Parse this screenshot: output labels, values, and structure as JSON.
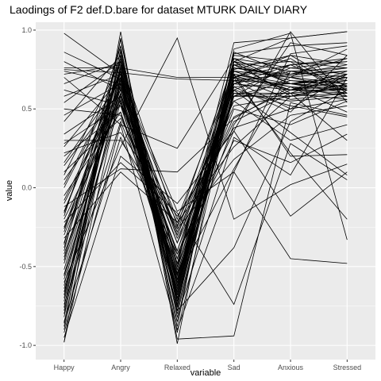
{
  "chart_data": {
    "type": "line",
    "title": "Laodings of F2 def.D.bare for dataset MTURK DAILY DIARY",
    "xlabel": "variable",
    "ylabel": "value",
    "categories": [
      "Happy",
      "Angry",
      "Relaxed",
      "Sad",
      "Anxious",
      "Stressed"
    ],
    "y_ticks": [
      1.0,
      0.5,
      0.0,
      -0.5,
      -1.0
    ],
    "y_tick_labels": [
      "1.0",
      "0.5",
      "0.0",
      "-0.5",
      "-1.0"
    ],
    "ylim": [
      -1.09,
      1.05
    ],
    "grid": true,
    "legend": "none",
    "colors": {
      "panel": "#ebebeb",
      "grid_major": "#ffffff",
      "line": "#000000"
    },
    "series": [
      {
        "values": [
          0.98,
          0.72,
          -0.52,
          0.74,
          0.62,
          0.7
        ]
      },
      {
        "values": [
          -0.98,
          0.99,
          -0.99,
          0.8,
          0.95,
          0.99
        ]
      },
      {
        "values": [
          0.75,
          0.73,
          0.69,
          0.68,
          0.66,
          0.64
        ]
      },
      {
        "values": [
          0.74,
          0.66,
          -0.32,
          0.42,
          0.6,
          0.72
        ]
      },
      {
        "values": [
          -0.88,
          0.95,
          -0.75,
          0.7,
          0.82,
          0.6
        ]
      },
      {
        "values": [
          -0.7,
          0.82,
          -0.5,
          0.58,
          0.68,
          0.64
        ]
      },
      {
        "values": [
          -0.62,
          0.78,
          -0.62,
          0.76,
          0.71,
          0.76
        ]
      },
      {
        "values": [
          -0.55,
          0.63,
          -0.7,
          0.62,
          0.52,
          0.45
        ]
      },
      {
        "values": [
          -0.48,
          0.7,
          -0.8,
          0.66,
          0.74,
          0.7
        ]
      },
      {
        "values": [
          -0.42,
          0.58,
          -0.55,
          0.71,
          0.62,
          0.68
        ]
      },
      {
        "values": [
          -0.35,
          0.76,
          -0.68,
          0.8,
          0.58,
          0.66
        ]
      },
      {
        "values": [
          -0.3,
          0.6,
          -0.45,
          0.5,
          0.4,
          0.55
        ]
      },
      {
        "values": [
          -0.25,
          0.66,
          -0.6,
          0.74,
          0.7,
          0.62
        ]
      },
      {
        "values": [
          -0.2,
          0.54,
          -0.4,
          0.64,
          0.66,
          0.72
        ]
      },
      {
        "values": [
          -0.15,
          0.72,
          -0.85,
          0.82,
          0.76,
          0.8
        ]
      },
      {
        "values": [
          -0.1,
          0.62,
          -0.3,
          0.52,
          0.58,
          0.6
        ]
      },
      {
        "values": [
          -0.05,
          0.48,
          -0.52,
          0.68,
          0.66,
          0.7
        ]
      },
      {
        "values": [
          0.0,
          0.7,
          -0.72,
          0.6,
          0.55,
          0.58
        ]
      },
      {
        "values": [
          0.05,
          0.55,
          -0.35,
          0.45,
          0.62,
          0.65
        ]
      },
      {
        "values": [
          0.1,
          0.44,
          -0.25,
          0.55,
          0.7,
          0.74
        ]
      },
      {
        "values": [
          0.16,
          0.68,
          -0.58,
          0.72,
          0.64,
          0.62
        ]
      },
      {
        "values": [
          0.22,
          0.35,
          -0.18,
          0.38,
          0.5,
          0.56
        ]
      },
      {
        "values": [
          0.28,
          0.52,
          -0.22,
          0.26,
          0.58,
          0.66
        ]
      },
      {
        "values": [
          0.3,
          0.3,
          -0.26,
          0.18,
          0.46,
          0.52
        ]
      },
      {
        "values": [
          0.42,
          0.84,
          -0.6,
          0.86,
          0.72,
          0.82
        ]
      },
      {
        "values": [
          0.5,
          0.46,
          -0.4,
          0.58,
          0.6,
          0.63
        ]
      },
      {
        "values": [
          0.58,
          0.72,
          -0.66,
          0.7,
          0.56,
          0.6
        ]
      },
      {
        "values": [
          0.66,
          0.8,
          -0.7,
          0.78,
          0.68,
          0.66
        ]
      },
      {
        "values": [
          0.72,
          0.78,
          -0.48,
          0.84,
          0.8,
          0.76
        ]
      },
      {
        "values": [
          0.8,
          0.62,
          -0.35,
          0.66,
          0.62,
          0.62
        ]
      },
      {
        "values": [
          0.86,
          0.69,
          -0.2,
          0.74,
          0.62,
          0.6
        ]
      },
      {
        "values": [
          -0.6,
          0.26,
          0.95,
          -0.2,
          0.02,
          0.15
        ]
      },
      {
        "values": [
          -0.4,
          0.9,
          -0.96,
          -0.94,
          0.54,
          0.46
        ]
      },
      {
        "values": [
          -0.22,
          0.16,
          -0.16,
          -0.74,
          0.28,
          0.05
        ]
      },
      {
        "values": [
          -0.78,
          0.76,
          -0.78,
          -0.38,
          0.42,
          0.62
        ]
      },
      {
        "values": [
          -0.72,
          0.74,
          -0.62,
          0.72,
          0.2,
          0.21
        ]
      },
      {
        "values": [
          -0.68,
          0.84,
          -0.88,
          0.88,
          0.98,
          -0.33
        ]
      },
      {
        "values": [
          -0.95,
          0.2,
          -0.1,
          0.36,
          0.99,
          0.54
        ]
      },
      {
        "values": [
          -0.92,
          0.4,
          -0.9,
          0.1,
          -0.45,
          -0.48
        ]
      },
      {
        "values": [
          -0.85,
          0.32,
          -0.42,
          0.36,
          -0.18,
          0.1
        ]
      },
      {
        "values": [
          -0.82,
          0.88,
          -0.72,
          0.62,
          0.35,
          0.08
        ]
      },
      {
        "values": [
          -0.76,
          0.94,
          -0.82,
          0.32,
          0.08,
          0.7
        ]
      },
      {
        "values": [
          -0.66,
          0.58,
          -0.55,
          0.4,
          0.92,
          0.84
        ]
      },
      {
        "values": [
          -0.58,
          0.66,
          -0.28,
          0.7,
          0.22,
          -0.2
        ]
      },
      {
        "values": [
          -0.52,
          0.7,
          -0.15,
          0.1,
          0.85,
          0.9
        ]
      },
      {
        "values": [
          -0.46,
          0.8,
          -0.74,
          0.78,
          0.6,
          0.3
        ]
      },
      {
        "values": [
          -0.38,
          0.74,
          -0.58,
          0.12,
          0.74,
          0.68
        ]
      },
      {
        "values": [
          -0.32,
          0.1,
          -0.22,
          0.55,
          0.3,
          0.4
        ]
      },
      {
        "values": [
          -0.26,
          0.56,
          -0.64,
          0.85,
          0.9,
          0.92
        ]
      },
      {
        "values": [
          -0.18,
          0.9,
          -0.92,
          0.64,
          0.48,
          0.84
        ]
      },
      {
        "values": [
          -0.12,
          0.12,
          0.1,
          0.44,
          0.64,
          0.48
        ]
      },
      {
        "values": [
          -0.08,
          0.64,
          -0.45,
          0.78,
          0.8,
          0.58
        ]
      },
      {
        "values": [
          0.02,
          0.72,
          -0.78,
          0.68,
          0.5,
          0.72
        ]
      },
      {
        "values": [
          0.08,
          0.8,
          -0.5,
          0.92,
          0.95,
          0.99
        ]
      },
      {
        "values": [
          0.14,
          0.62,
          -0.42,
          0.3,
          0.16,
          0.34
        ]
      },
      {
        "values": [
          0.2,
          0.48,
          -0.66,
          0.76,
          0.7,
          0.88
        ]
      },
      {
        "values": [
          0.26,
          0.7,
          -0.3,
          0.62,
          0.76,
          0.72
        ]
      },
      {
        "values": [
          0.34,
          0.58,
          -0.6,
          0.7,
          0.64,
          0.58
        ]
      },
      {
        "values": [
          0.46,
          0.66,
          -0.58,
          0.68,
          0.72,
          0.74
        ]
      },
      {
        "values": [
          0.54,
          0.8,
          -0.24,
          0.8,
          0.66,
          0.68
        ]
      },
      {
        "values": [
          0.62,
          0.52,
          -0.56,
          0.58,
          0.58,
          0.64
        ]
      },
      {
        "values": [
          0.7,
          0.4,
          0.25,
          0.82,
          0.66,
          0.6
        ]
      },
      {
        "values": [
          0.76,
          0.76,
          0.7,
          0.7,
          0.78,
          0.62
        ]
      },
      {
        "values": [
          -0.98,
          0.6,
          -0.62,
          0.75,
          0.84,
          0.78
        ]
      },
      {
        "values": [
          -0.9,
          0.7,
          -0.58,
          0.66,
          0.62,
          0.74
        ]
      },
      {
        "values": [
          -0.74,
          0.42,
          -0.48,
          0.74,
          0.7,
          0.66
        ]
      },
      {
        "values": [
          -0.64,
          0.54,
          -0.7,
          0.58,
          0.78,
          0.8
        ]
      },
      {
        "values": [
          -0.56,
          0.68,
          -0.76,
          0.82,
          0.66,
          0.7
        ]
      },
      {
        "values": [
          -0.44,
          0.6,
          -0.64,
          0.7,
          0.84,
          0.64
        ]
      },
      {
        "values": [
          -0.36,
          0.86,
          -0.68,
          0.76,
          0.72,
          0.78
        ]
      },
      {
        "values": [
          -0.28,
          0.76,
          -0.54,
          0.6,
          0.6,
          0.56
        ]
      },
      {
        "values": [
          -0.16,
          0.74,
          -0.62,
          0.66,
          0.78,
          0.82
        ]
      },
      {
        "values": [
          -0.86,
          0.84,
          -0.7,
          0.72,
          0.66,
          0.62
        ]
      },
      {
        "values": [
          -0.8,
          0.66,
          -0.66,
          0.8,
          0.74,
          0.76
        ]
      }
    ]
  }
}
